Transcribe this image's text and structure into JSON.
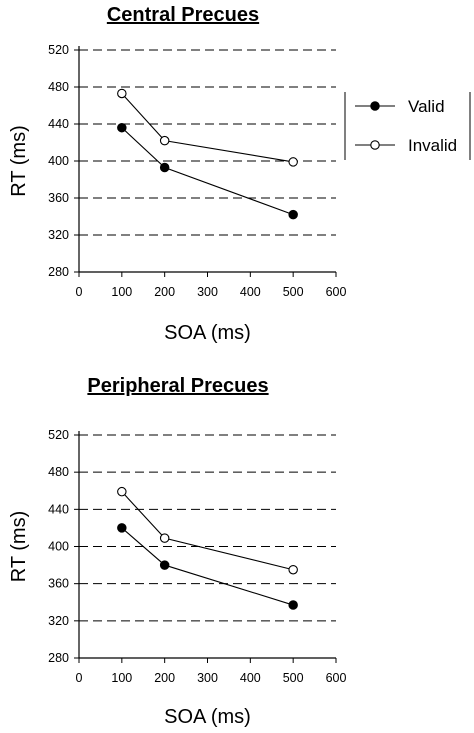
{
  "chart_data": [
    {
      "type": "line",
      "title": "Central Precues",
      "xlabel": "SOA (ms)",
      "ylabel": "RT (ms)",
      "xlim": [
        0,
        600
      ],
      "ylim": [
        280,
        520
      ],
      "xticks": [
        0,
        100,
        200,
        300,
        400,
        500,
        600
      ],
      "yticks": [
        280,
        320,
        360,
        400,
        440,
        480,
        520
      ],
      "grid": "dashed horizontal",
      "legend": "right",
      "series": [
        {
          "name": "Valid",
          "marker": "filled-circle",
          "x": [
            100,
            200,
            500
          ],
          "values": [
            436,
            393,
            342
          ]
        },
        {
          "name": "Invalid",
          "marker": "open-circle",
          "x": [
            100,
            200,
            500
          ],
          "values": [
            473,
            422,
            399
          ]
        }
      ]
    },
    {
      "type": "line",
      "title": "Peripheral Precues",
      "xlabel": "SOA (ms)",
      "ylabel": "RT (ms)",
      "xlim": [
        0,
        600
      ],
      "ylim": [
        280,
        520
      ],
      "xticks": [
        0,
        100,
        200,
        300,
        400,
        500,
        600
      ],
      "yticks": [
        280,
        320,
        360,
        400,
        440,
        480,
        520
      ],
      "grid": "dashed horizontal",
      "series": [
        {
          "name": "Valid",
          "marker": "filled-circle",
          "x": [
            100,
            200,
            500
          ],
          "values": [
            420,
            380,
            337
          ]
        },
        {
          "name": "Invalid",
          "marker": "open-circle",
          "x": [
            100,
            200,
            500
          ],
          "values": [
            459,
            409,
            375
          ]
        }
      ]
    }
  ],
  "legend": {
    "entries": [
      "Valid",
      "Invalid"
    ]
  }
}
